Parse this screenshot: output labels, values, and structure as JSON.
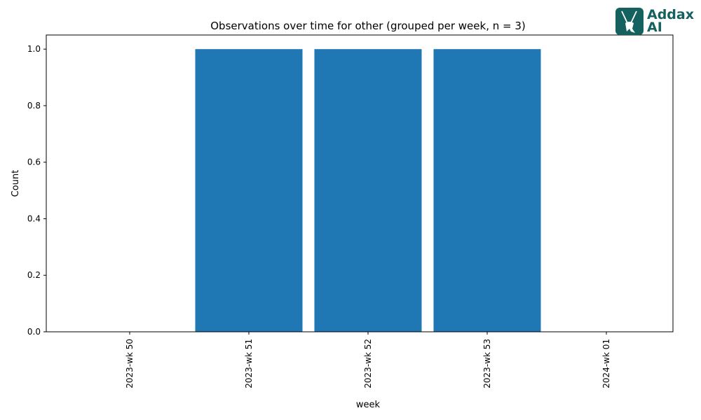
{
  "chart_data": {
    "type": "bar",
    "title": "Observations over time for other (grouped per week, n = 3)",
    "xlabel": "week",
    "ylabel": "Count",
    "categories": [
      "2023-wk 50",
      "2023-wk 51",
      "2023-wk 52",
      "2023-wk 53",
      "2024-wk 01"
    ],
    "values": [
      0,
      1,
      1,
      1,
      0
    ],
    "ylim": [
      0,
      1.05
    ],
    "yticks": [
      "0.0",
      "0.2",
      "0.4",
      "0.6",
      "0.8",
      "1.0"
    ],
    "bar_color": "#1f77b4",
    "grid": false,
    "legend": "none"
  },
  "logo": {
    "line1": "Addax",
    "line2": "AI",
    "color": "#15615f"
  }
}
